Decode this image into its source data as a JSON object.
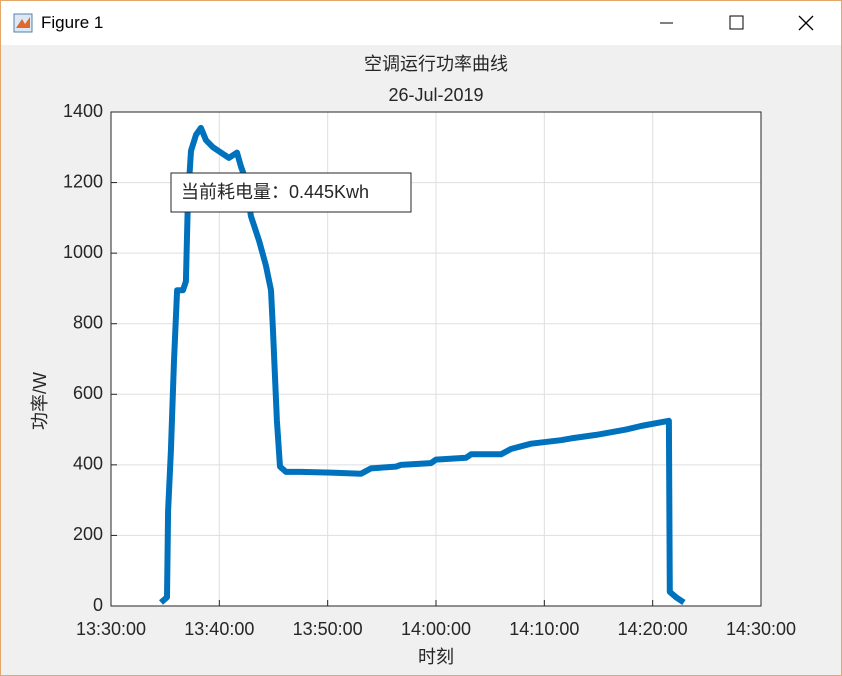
{
  "window": {
    "title": "Figure 1"
  },
  "chart_data": {
    "type": "line",
    "title": "空调运行功率曲线",
    "subtitle": "26-Jul-2019",
    "x_label": "时刻",
    "y_label": "功率/W",
    "annotation": "当前耗电量：0.445Kwh",
    "color": "#0072bd",
    "grid": true,
    "xlim": [
      "13:30:00",
      "14:30:00"
    ],
    "xticks": [
      "13:30:00",
      "13:40:00",
      "13:50:00",
      "14:00:00",
      "14:10:00",
      "14:20:00",
      "14:30:00"
    ],
    "ylim": [
      0,
      1400
    ],
    "yticks": [
      0,
      200,
      400,
      600,
      800,
      1000,
      1200,
      1400
    ],
    "x": [
      "13:34:37",
      "13:35:10",
      "13:35:16",
      "13:35:32",
      "13:35:49",
      "13:36:06",
      "13:36:39",
      "13:36:55",
      "13:37:06",
      "13:37:23",
      "13:37:51",
      "13:38:18",
      "13:38:46",
      "13:39:25",
      "13:40:09",
      "13:40:53",
      "13:41:38",
      "13:42:00",
      "13:42:28",
      "13:42:55",
      "13:43:40",
      "13:44:18",
      "13:44:46",
      "13:44:57",
      "13:45:19",
      "13:45:36",
      "13:46:09",
      "13:47:32",
      "13:50:18",
      "13:53:05",
      "13:54:00",
      "13:56:18",
      "13:56:46",
      "13:59:32",
      "14:00:00",
      "14:02:46",
      "14:03:14",
      "14:06:00",
      "14:06:55",
      "14:08:46",
      "14:11:32",
      "14:12:28",
      "14:14:46",
      "14:17:32",
      "14:18:55",
      "14:21:30",
      "14:21:35",
      "14:22:09",
      "14:22:53"
    ],
    "values": [
      10,
      25,
      270,
      440,
      695,
      895,
      895,
      920,
      1150,
      1290,
      1335,
      1355,
      1320,
      1300,
      1285,
      1270,
      1285,
      1245,
      1205,
      1105,
      1035,
      965,
      895,
      780,
      525,
      395,
      380,
      380,
      378,
      375,
      390,
      395,
      400,
      405,
      415,
      420,
      430,
      430,
      445,
      460,
      470,
      475,
      485,
      500,
      510,
      525,
      40,
      25,
      10
    ]
  }
}
